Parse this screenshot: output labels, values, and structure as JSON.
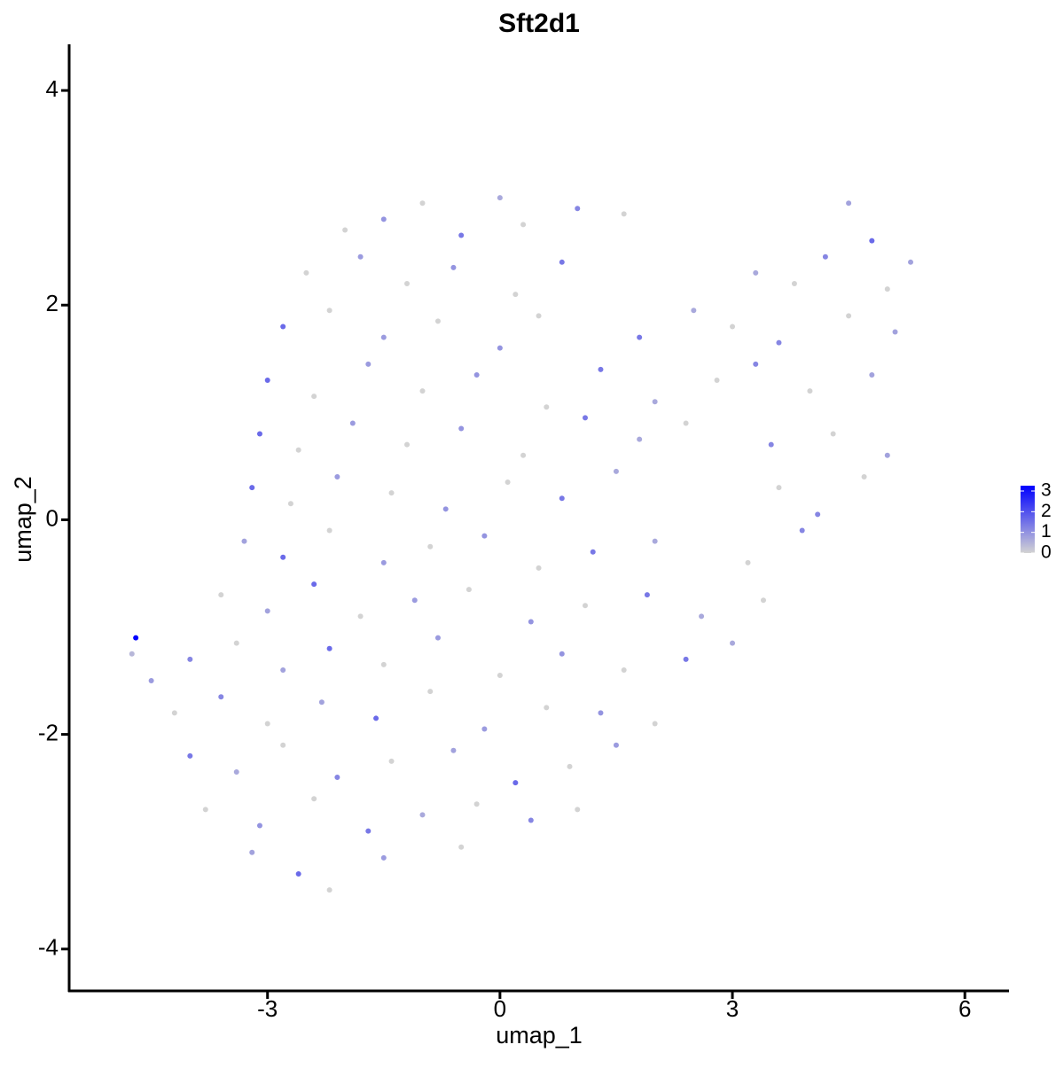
{
  "chart_data": {
    "type": "scatter",
    "title": "Sft2d1",
    "x_label": "umap_1",
    "y_label": "umap_2",
    "xlim": [
      -5.56,
      6.57
    ],
    "ylim": [
      -4.39,
      4.43
    ],
    "xticks": [
      -3,
      0,
      3,
      6
    ],
    "yticks": [
      -4,
      -2,
      0,
      2,
      4
    ],
    "colorbar": {
      "lim": [
        0,
        3
      ],
      "ticks": [
        0,
        1,
        2,
        3
      ],
      "colors": [
        "#d3d3d3",
        "#0000ff"
      ]
    },
    "x": [
      -2,
      -1.5,
      -1,
      -0.5,
      0,
      0.3,
      1,
      1.6,
      4.5,
      4.8,
      -2.5,
      -1.8,
      -1.2,
      -0.6,
      0.2,
      0.8,
      3.3,
      3.8,
      4.2,
      5,
      5.3,
      -2.8,
      -2.2,
      -1.5,
      -0.8,
      0,
      0.5,
      1.8,
      2.5,
      3,
      3.6,
      4.5,
      5.1,
      -3,
      -2.4,
      -1.7,
      -1,
      -0.3,
      0.6,
      1.3,
      2,
      2.8,
      3.3,
      4,
      4.8,
      -3.1,
      -2.6,
      -1.9,
      -1.2,
      -0.5,
      0.3,
      1.1,
      1.8,
      2.4,
      3.5,
      4.3,
      5,
      -3.2,
      -2.7,
      -2.1,
      -1.4,
      -0.7,
      0.1,
      0.8,
      1.5,
      3.6,
      4.1,
      4.7,
      -3.3,
      -2.8,
      -2.2,
      -1.5,
      -0.9,
      -0.2,
      0.5,
      1.2,
      2,
      3.2,
      3.9,
      -3.6,
      -3,
      -2.4,
      -1.8,
      -1.1,
      -0.4,
      0.4,
      1.1,
      1.9,
      2.6,
      3.4,
      -4,
      -3.4,
      -2.8,
      -2.2,
      -1.5,
      -0.8,
      0,
      0.8,
      1.6,
      2.4,
      3,
      -4.2,
      -3.6,
      -3,
      -2.3,
      -1.6,
      -0.9,
      -0.2,
      0.6,
      1.3,
      2,
      -4,
      -3.4,
      -2.8,
      -2.1,
      -1.4,
      -0.6,
      0.2,
      0.9,
      1.5,
      -3.8,
      -3.1,
      -2.4,
      -1.7,
      -1,
      -0.3,
      0.4,
      1,
      -3.2,
      -2.6,
      -2.2,
      -1.5,
      -0.5,
      -4.7,
      -4.75,
      -4.5
    ],
    "y": [
      2.7,
      2.8,
      2.95,
      2.65,
      3.0,
      2.75,
      2.9,
      2.85,
      2.95,
      2.6,
      2.3,
      2.45,
      2.2,
      2.35,
      2.1,
      2.4,
      2.3,
      2.2,
      2.45,
      2.15,
      2.4,
      1.8,
      1.95,
      1.7,
      1.85,
      1.6,
      1.9,
      1.7,
      1.95,
      1.8,
      1.65,
      1.9,
      1.75,
      1.3,
      1.15,
      1.45,
      1.2,
      1.35,
      1.05,
      1.4,
      1.1,
      1.3,
      1.45,
      1.2,
      1.35,
      0.8,
      0.65,
      0.9,
      0.7,
      0.85,
      0.6,
      0.95,
      0.75,
      0.9,
      0.7,
      0.8,
      0.6,
      0.3,
      0.15,
      0.4,
      0.25,
      0.1,
      0.35,
      0.2,
      0.45,
      0.3,
      0.05,
      0.4,
      -0.2,
      -0.35,
      -0.1,
      -0.4,
      -0.25,
      -0.15,
      -0.45,
      -0.3,
      -0.2,
      -0.4,
      -0.1,
      -0.7,
      -0.85,
      -0.6,
      -0.9,
      -0.75,
      -0.65,
      -0.95,
      -0.8,
      -0.7,
      -0.9,
      -0.75,
      -1.3,
      -1.15,
      -1.4,
      -1.2,
      -1.35,
      -1.1,
      -1.45,
      -1.25,
      -1.4,
      -1.3,
      -1.15,
      -1.8,
      -1.65,
      -1.9,
      -1.7,
      -1.85,
      -1.6,
      -1.95,
      -1.75,
      -1.8,
      -1.9,
      -2.2,
      -2.35,
      -2.1,
      -2.4,
      -2.25,
      -2.15,
      -2.45,
      -2.3,
      -2.1,
      -2.7,
      -2.85,
      -2.6,
      -2.9,
      -2.75,
      -2.65,
      -2.8,
      -2.7,
      -3.1,
      -3.3,
      -3.45,
      -3.15,
      -3.05,
      -1.1,
      -1.25,
      -1.5
    ],
    "expression": [
      0,
      0.9,
      0,
      1.3,
      0.6,
      0,
      1.1,
      0,
      0.7,
      1.5,
      0,
      0.8,
      0,
      0.9,
      0,
      1.3,
      0.6,
      0,
      1.1,
      0,
      0.7,
      1.5,
      0,
      0.8,
      0,
      0.9,
      0,
      1.3,
      0.6,
      0,
      1.1,
      0,
      0.7,
      1.5,
      0,
      0.8,
      0,
      0.9,
      0,
      1.3,
      0.6,
      0,
      1.1,
      0,
      0.7,
      1.5,
      0,
      0.8,
      0,
      0.9,
      0,
      1.3,
      0.6,
      0,
      1.1,
      0,
      0.7,
      1.5,
      0,
      0.8,
      0,
      0.9,
      0,
      1.3,
      0.6,
      0,
      1.1,
      0,
      0.7,
      1.5,
      0,
      0.8,
      0,
      0.9,
      0,
      1.3,
      0.6,
      0,
      1.1,
      0,
      0.7,
      1.5,
      0,
      0.8,
      0,
      0.9,
      0,
      1.3,
      0.6,
      0,
      1.1,
      0,
      0.7,
      1.5,
      0,
      0.8,
      0,
      0.9,
      0,
      1.3,
      0.6,
      0,
      1.1,
      0,
      0.7,
      1.5,
      0,
      0.8,
      0,
      0.9,
      0,
      1.3,
      0.6,
      0,
      1.1,
      0,
      0.7,
      1.5,
      0,
      0.8,
      0,
      0.9,
      0,
      1.3,
      0.6,
      0,
      1.1,
      0,
      0.7,
      1.5,
      0,
      0.8,
      0,
      3,
      0.4,
      0.8
    ]
  }
}
